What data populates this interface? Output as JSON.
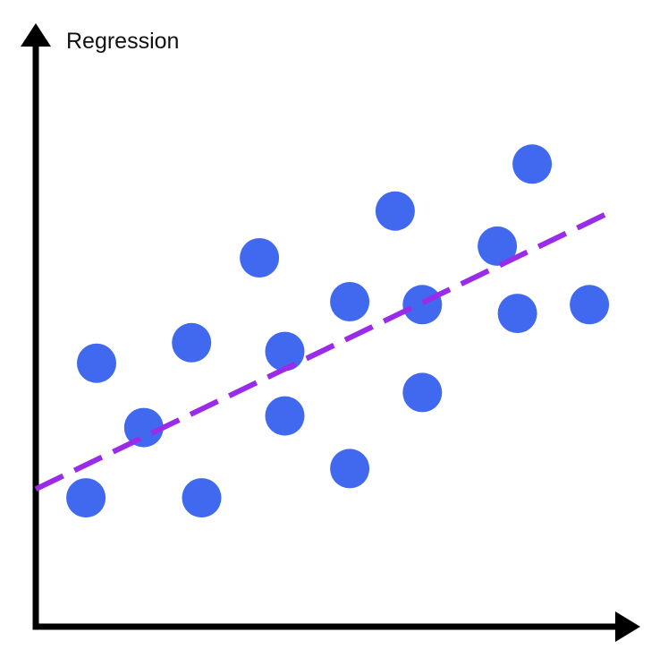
{
  "chart_data": {
    "type": "scatter",
    "title": "Regression",
    "xlabel": "",
    "ylabel": "",
    "xlim": [
      0,
      100
    ],
    "ylim": [
      0,
      100
    ],
    "grid": false,
    "legend": "none",
    "ticks": false,
    "colors": {
      "points": "#4169f0",
      "trendline": "#9a2be8",
      "axes": "#000000"
    },
    "points": [
      {
        "x": 8.5,
        "y": 22.0
      },
      {
        "x": 10.3,
        "y": 45.0
      },
      {
        "x": 18.3,
        "y": 34.0
      },
      {
        "x": 28.1,
        "y": 22.0
      },
      {
        "x": 26.4,
        "y": 48.5
      },
      {
        "x": 37.9,
        "y": 63.0
      },
      {
        "x": 42.2,
        "y": 36.0
      },
      {
        "x": 42.2,
        "y": 47.0
      },
      {
        "x": 53.2,
        "y": 27.0
      },
      {
        "x": 53.2,
        "y": 55.5
      },
      {
        "x": 60.9,
        "y": 71.0
      },
      {
        "x": 65.5,
        "y": 55.0
      },
      {
        "x": 65.5,
        "y": 40.0
      },
      {
        "x": 78.2,
        "y": 65.0
      },
      {
        "x": 81.6,
        "y": 53.5
      },
      {
        "x": 84.1,
        "y": 79.0
      },
      {
        "x": 93.8,
        "y": 55.0
      }
    ],
    "trendline": {
      "style": "dashed",
      "x": [
        0,
        96.7
      ],
      "y": [
        23.5,
        70.5
      ]
    }
  }
}
